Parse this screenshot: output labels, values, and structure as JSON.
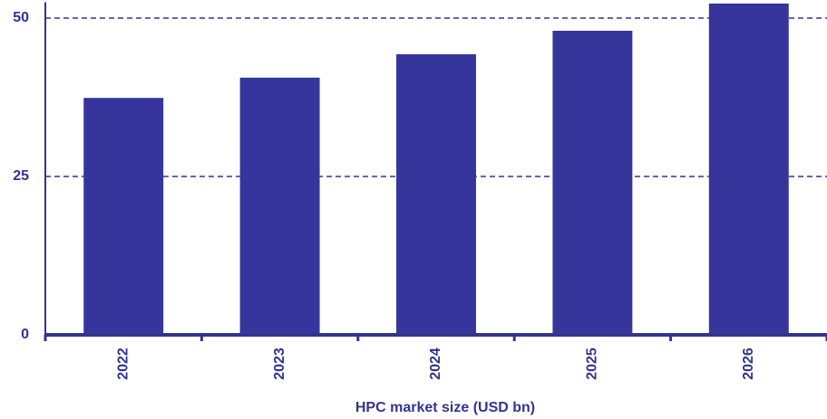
{
  "chart_data": {
    "type": "bar",
    "x_label": "HPC market size (USD bn)",
    "categories": [
      "2022",
      "2023",
      "2024",
      "2025",
      "2026"
    ],
    "values": [
      37.4,
      40.6,
      44.3,
      48.0,
      52.3
    ],
    "color": "#35359b",
    "ylim": [
      0,
      52.5
    ],
    "yticks": [
      0,
      25,
      50
    ],
    "grid": true
  }
}
